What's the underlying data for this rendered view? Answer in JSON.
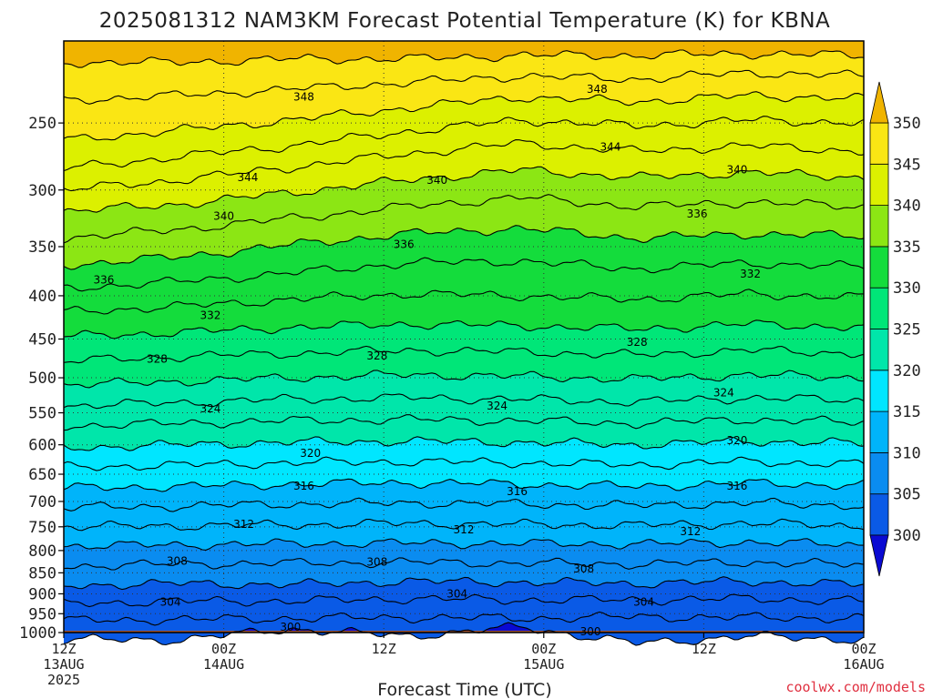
{
  "chart_data": {
    "type": "heatmap",
    "title": "2025081312 NAM3KM Forecast Potential Temperature (K) for KBNA",
    "xlabel": "Forecast Time (UTC)",
    "ylabel": "",
    "y_log_scale": true,
    "ylim": [
      1000,
      200
    ],
    "y_ticks": [
      250,
      300,
      350,
      400,
      450,
      500,
      550,
      600,
      650,
      700,
      750,
      800,
      850,
      900,
      950,
      1000
    ],
    "xlim": [
      0,
      60
    ],
    "x_ticks": [
      {
        "hour": 0,
        "lines": [
          "12Z",
          "13AUG",
          "2025"
        ]
      },
      {
        "hour": 12,
        "lines": [
          "00Z",
          "14AUG"
        ]
      },
      {
        "hour": 24,
        "lines": [
          "12Z"
        ]
      },
      {
        "hour": 36,
        "lines": [
          "00Z",
          "15AUG"
        ]
      },
      {
        "hour": 48,
        "lines": [
          "12Z"
        ]
      },
      {
        "hour": 60,
        "lines": [
          "00Z",
          "16AUG"
        ]
      }
    ],
    "grid": true,
    "colorbar": {
      "levels": [
        300,
        305,
        310,
        315,
        320,
        325,
        330,
        335,
        340,
        345,
        350
      ],
      "colors": [
        "#0a0ad2",
        "#0a5ae6",
        "#0a8cf0",
        "#00b4fa",
        "#00e6ff",
        "#00e6aa",
        "#00e678",
        "#14dc3c",
        "#8ce614",
        "#dcf000",
        "#fae614",
        "#f0b400"
      ],
      "extend": "both"
    },
    "contour_interval": 2,
    "isentropes": [
      {
        "value": 300,
        "p": [
          1020,
          1020,
          990,
          1010,
          985,
          1030,
          1010,
          1020
        ]
      },
      {
        "value": 302,
        "p": [
          968,
          965,
          962,
          960,
          962,
          958,
          960,
          962
        ]
      },
      {
        "value": 304,
        "p": [
          925,
          918,
          918,
          912,
          915,
          915,
          912,
          918
        ]
      },
      {
        "value": 306,
        "p": [
          880,
          875,
          878,
          870,
          872,
          875,
          870,
          878
        ]
      },
      {
        "value": 308,
        "p": [
          835,
          830,
          828,
          826,
          828,
          830,
          826,
          832
        ]
      },
      {
        "value": 310,
        "p": [
          790,
          788,
          785,
          784,
          785,
          786,
          782,
          788
        ]
      },
      {
        "value": 312,
        "p": [
          750,
          748,
          746,
          743,
          745,
          747,
          743,
          748
        ]
      },
      {
        "value": 314,
        "p": [
          712,
          709,
          705,
          703,
          705,
          708,
          703,
          708
        ]
      },
      {
        "value": 316,
        "p": [
          675,
          672,
          668,
          665,
          668,
          672,
          666,
          670
        ]
      },
      {
        "value": 318,
        "p": [
          638,
          634,
          630,
          628,
          630,
          634,
          628,
          633
        ]
      },
      {
        "value": 320,
        "p": [
          605,
          600,
          596,
          594,
          596,
          600,
          594,
          598
        ]
      },
      {
        "value": 322,
        "p": [
          570,
          566,
          562,
          560,
          562,
          566,
          560,
          565
        ]
      },
      {
        "value": 324,
        "p": [
          540,
          535,
          530,
          528,
          530,
          534,
          528,
          532
        ]
      },
      {
        "value": 326,
        "p": [
          510,
          505,
          500,
          496,
          498,
          502,
          496,
          500
        ]
      },
      {
        "value": 328,
        "p": [
          478,
          472,
          468,
          464,
          466,
          470,
          464,
          468
        ]
      },
      {
        "value": 330,
        "p": [
          447,
          442,
          436,
          432,
          434,
          438,
          432,
          436
        ]
      },
      {
        "value": 332,
        "p": [
          418,
          412,
          404,
          398,
          400,
          404,
          398,
          402
        ]
      },
      {
        "value": 334,
        "p": [
          392,
          385,
          376,
          366,
          364,
          372,
          366,
          370
        ]
      },
      {
        "value": 336,
        "p": [
          368,
          360,
          348,
          338,
          333,
          342,
          338,
          340
        ]
      },
      {
        "value": 338,
        "p": [
          342,
          334,
          324,
          314,
          306,
          314,
          310,
          314
        ]
      },
      {
        "value": 340,
        "p": [
          318,
          312,
          302,
          292,
          284,
          290,
          286,
          290
        ]
      },
      {
        "value": 342,
        "p": [
          300,
          292,
          282,
          272,
          264,
          270,
          266,
          270
        ]
      },
      {
        "value": 344,
        "p": [
          283,
          274,
          266,
          256,
          248,
          252,
          248,
          250
        ]
      },
      {
        "value": 346,
        "p": [
          262,
          255,
          248,
          240,
          233,
          236,
          232,
          234
        ]
      },
      {
        "value": 348,
        "p": [
          235,
          232,
          228,
          224,
          220,
          222,
          218,
          220
        ]
      },
      {
        "value": 350,
        "p": [
          212,
          212,
          210,
          210,
          208,
          208,
          207,
          208
        ]
      }
    ],
    "contour_hours": [
      0,
      8.6,
      17.1,
      25.7,
      34.3,
      42.9,
      51.4,
      60
    ],
    "contour_labels": [
      {
        "text": "348",
        "hour": 18,
        "p": 233
      },
      {
        "text": "348",
        "hour": 40,
        "p": 228
      },
      {
        "text": "344",
        "hour": 13.8,
        "p": 290
      },
      {
        "text": "344",
        "hour": 41,
        "p": 267
      },
      {
        "text": "340",
        "hour": 12,
        "p": 322
      },
      {
        "text": "340",
        "hour": 28,
        "p": 292
      },
      {
        "text": "340",
        "hour": 50.5,
        "p": 284
      },
      {
        "text": "336",
        "hour": 3,
        "p": 383
      },
      {
        "text": "336",
        "hour": 25.5,
        "p": 348
      },
      {
        "text": "336",
        "hour": 47.5,
        "p": 320
      },
      {
        "text": "332",
        "hour": 11,
        "p": 422
      },
      {
        "text": "332",
        "hour": 51.5,
        "p": 377
      },
      {
        "text": "328",
        "hour": 7,
        "p": 475
      },
      {
        "text": "328",
        "hour": 23.5,
        "p": 471
      },
      {
        "text": "328",
        "hour": 43,
        "p": 454
      },
      {
        "text": "324",
        "hour": 11,
        "p": 544
      },
      {
        "text": "324",
        "hour": 32.5,
        "p": 540
      },
      {
        "text": "324",
        "hour": 49.5,
        "p": 521
      },
      {
        "text": "320",
        "hour": 18.5,
        "p": 614
      },
      {
        "text": "320",
        "hour": 50.5,
        "p": 593
      },
      {
        "text": "316",
        "hour": 18,
        "p": 671
      },
      {
        "text": "316",
        "hour": 34,
        "p": 681
      },
      {
        "text": "316",
        "hour": 50.5,
        "p": 671
      },
      {
        "text": "312",
        "hour": 13.5,
        "p": 745
      },
      {
        "text": "312",
        "hour": 30,
        "p": 756
      },
      {
        "text": "312",
        "hour": 47,
        "p": 760
      },
      {
        "text": "308",
        "hour": 8.5,
        "p": 823
      },
      {
        "text": "308",
        "hour": 23.5,
        "p": 825
      },
      {
        "text": "308",
        "hour": 39,
        "p": 841
      },
      {
        "text": "304",
        "hour": 8,
        "p": 920
      },
      {
        "text": "304",
        "hour": 29.5,
        "p": 900
      },
      {
        "text": "304",
        "hour": 43.5,
        "p": 920
      },
      {
        "text": "300",
        "hour": 17,
        "p": 985
      },
      {
        "text": "300",
        "hour": 39.5,
        "p": 997
      }
    ],
    "surface_pressure": 995
  },
  "credit": "coolwx.com/models"
}
